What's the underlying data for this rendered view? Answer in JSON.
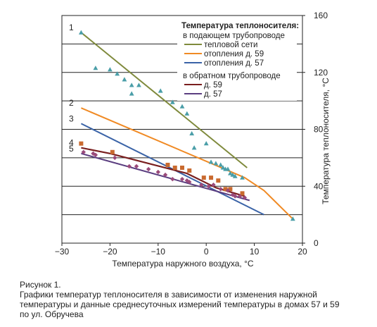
{
  "chart_data": {
    "type": "line",
    "xlabel": "Температура наружного воздуха, °С",
    "ylabel": "Температура теплоносителя, °С",
    "xlim": [
      -30,
      20
    ],
    "ylim": [
      0,
      160
    ],
    "xticks": [
      "−30",
      "−20",
      "−10",
      "0",
      "10",
      "20"
    ],
    "yticks": [
      "0",
      "40",
      "80",
      "120",
      "160"
    ],
    "grid": "horizontal",
    "legend": {
      "placement": "top-right",
      "heading": "Температура теплоносителя:",
      "group_supply": "в подающем трубопроводе",
      "group_return": "в обратном трубопроводе"
    },
    "series": [
      {
        "name": "тепловой сети",
        "curve_label": "1",
        "color": "#7f8a3c",
        "x": [
          -26,
          8.5
        ],
        "values": [
          148,
          53
        ]
      },
      {
        "name": "отопления д. 59",
        "curve_label": "2",
        "color": "#f08a24",
        "x": [
          -26,
          8,
          12,
          18
        ],
        "values": [
          95,
          46,
          37,
          17
        ]
      },
      {
        "name": "отопления д. 57",
        "curve_label": "3",
        "color": "#3a63a7",
        "x": [
          -26,
          12
        ],
        "values": [
          84,
          20
        ]
      },
      {
        "name": "д. 59",
        "curve_label": "4",
        "color": "#7a1f1f",
        "x": [
          -26,
          -20,
          -12,
          -4,
          2,
          8
        ],
        "values": [
          67,
          63,
          56,
          49,
          39,
          33
        ]
      },
      {
        "name": "д. 57",
        "curve_label": "5",
        "color": "#5b3e80",
        "x": [
          -26,
          9
        ],
        "values": [
          63,
          30
        ]
      }
    ],
    "markers": [
      {
        "series": "supply_measured",
        "color": "#4a9ea8",
        "shape": "triangle",
        "x": [
          -26,
          -23,
          -20,
          -18.5,
          -17,
          -15.5,
          -15.5,
          -14,
          -9.5,
          -7,
          -5,
          -4,
          -3,
          -2.5,
          0,
          1,
          2,
          3,
          3.5,
          4,
          4.5,
          5,
          5.5,
          6,
          7.5,
          18
        ],
        "y": [
          148,
          123,
          122,
          119,
          115,
          105,
          111,
          111,
          107,
          99,
          96,
          91,
          77,
          67,
          70,
          57,
          56,
          55,
          53,
          52,
          52,
          49,
          48,
          47,
          46,
          17
        ]
      },
      {
        "series": "return_59_measured",
        "color": "#c96a2f",
        "shape": "square",
        "x": [
          -26,
          -19.5,
          -8,
          -6.5,
          -5,
          -3.5,
          -0.5,
          1,
          2.5,
          4,
          5,
          7.5
        ],
        "y": [
          70,
          64,
          55,
          53,
          53,
          51,
          46,
          46,
          44,
          38,
          38,
          35
        ]
      },
      {
        "series": "return_57_measured",
        "color": "#9a4a7a",
        "shape": "diamond",
        "x": [
          -25.5,
          -23.5,
          -23,
          -19,
          -16,
          -14.5,
          -12,
          -10,
          -8.5,
          -7,
          -5,
          -4,
          -3.5,
          -1,
          0.5,
          1.5,
          3,
          4.5,
          5.5,
          6,
          7,
          8
        ],
        "y": [
          64,
          63,
          62,
          60,
          54,
          54,
          52,
          50,
          48,
          45,
          45,
          44,
          43,
          41,
          40,
          41,
          38,
          37,
          34,
          33,
          33,
          32
        ]
      }
    ]
  },
  "caption": {
    "line1": "Рисунок 1.",
    "line2": "Графики температур теплоносителя в зависимости от изменения наружной",
    "line3": "температуры и данные среднесуточных измерений температуры в домах 57 и 59",
    "line4": "по ул. Обручева"
  }
}
